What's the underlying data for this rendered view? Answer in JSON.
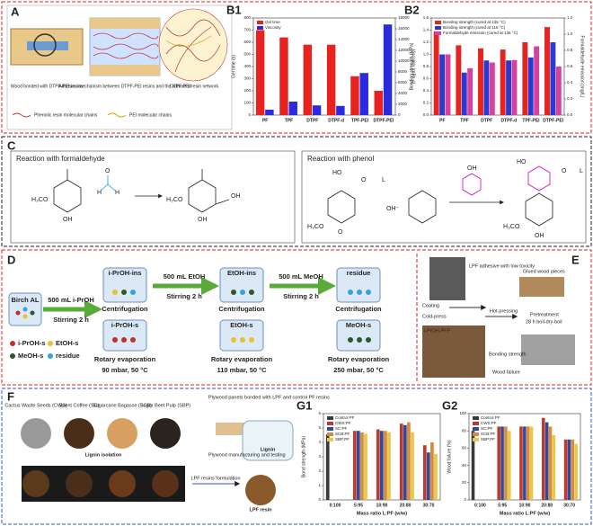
{
  "panel_a": {
    "label": "A",
    "captions": [
      "Wood bonded with DTPF-PEI resins",
      "Adhesion mechanism between DTPF-PEI resins and the adherend",
      "DTPF-PEI resin network"
    ],
    "legend": [
      "Phenolic resin molecular chains",
      "PEI molecular chains"
    ]
  },
  "panel_c": {
    "label": "C",
    "left_title": "Reaction with formaldehyde",
    "right_title": "Reaction with phenol",
    "catalyst": "OH⁻",
    "atoms": [
      "H₃CO",
      "OH",
      "H",
      "H",
      "O",
      "H₃CO",
      "OH",
      "OH",
      "HO",
      "O",
      "L",
      "H₃CO",
      "O",
      "OH",
      "HO",
      "O",
      "L",
      "H₃CO",
      "OH"
    ]
  },
  "panel_d": {
    "label": "D",
    "start": "Birch AL",
    "steps": [
      "500 mL i-PrOH",
      "500 mL EtOH",
      "500 mL MeOH"
    ],
    "stirring": [
      "Stirring 2 h",
      "Stirring 2 h",
      "Stirring 2 h"
    ],
    "insolubles": [
      "i-PrOH-ins",
      "EtOH-ins",
      "residue"
    ],
    "centrifugation": [
      "Centrifugation",
      "Centrifugation",
      "Centrifugation"
    ],
    "solubles": [
      "i-PrOH-s",
      "EtOH-s",
      "MeOH-s"
    ],
    "evaporation": [
      "Rotary evaporation",
      "Rotary evaporation",
      "Rotary evaporation"
    ],
    "conditions": [
      "90 mbar, 50 °C",
      "110 mbar, 50 °C",
      "250 mbar, 50 °C"
    ],
    "legend": [
      "i-PrOH-s",
      "EtOH-s",
      "MeOH-s",
      "residue"
    ]
  },
  "panel_e": {
    "label": "E",
    "texts": [
      "LPF adhesive with low toxicity",
      "Coating",
      "Cold-press",
      "Hot-pressing",
      "Glued wood pieces",
      "Pretreatment",
      "28 h boil-dry-boil",
      "i-PrOH-PFP",
      "Bonding strength",
      "Wood failure"
    ]
  },
  "panel_f": {
    "label": "F",
    "sources": [
      "Cactus Waste Seeds (CWS)",
      "Spent Coffee (SC)",
      "Sugarcane Bagasse (SCB)",
      "Sugar Beet Pulp (SBP)"
    ],
    "texts": [
      "Lignin isolation",
      "LPF resins formulation",
      "LPF resin",
      "Plywood panels bonded with LPF and control PF resins",
      "Plywood manufacturing and testing",
      "Lignin"
    ]
  },
  "chart_data": [
    {
      "type": "bar",
      "label": "B1",
      "categories": [
        "PF",
        "TPF",
        "DTPF",
        "DTPF-d",
        "TPF-PEI",
        "DTPF-PEI"
      ],
      "series": [
        {
          "name": "Gel time",
          "color": "#e8231f",
          "values": [
            700,
            640,
            580,
            580,
            320,
            200
          ]
        },
        {
          "name": "Viscosity",
          "color": "#2a2ae0",
          "axis": "y2",
          "values": [
            1000,
            2500,
            1800,
            1700,
            7800,
            16800
          ]
        }
      ],
      "ylabel": "Gel time (s)",
      "ylim": [
        0,
        800
      ],
      "yticks": [
        0,
        100,
        200,
        300,
        400,
        500,
        600,
        700,
        800
      ],
      "y2label": "Viscosity (mPa·s)",
      "y2lim": [
        0,
        18000
      ],
      "y2ticks": [
        0,
        2000,
        4000,
        6000,
        8000,
        10000,
        12000,
        14000,
        16000,
        18000
      ]
    },
    {
      "type": "bar",
      "label": "B2",
      "categories": [
        "PF",
        "TPF",
        "DTPF",
        "DTPF-d",
        "TPF-PEI",
        "DTPF-PEI"
      ],
      "series": [
        {
          "name": "Bonding strength (cured at 135 °C)",
          "color": "#e8231f",
          "values": [
            1.38,
            1.15,
            1.1,
            1.08,
            1.2,
            1.45
          ]
        },
        {
          "name": "Bonding strength (cured at 115 °C)",
          "color": "#2a3ad0",
          "values": [
            1.0,
            0.7,
            0.9,
            0.9,
            0.95,
            1.2
          ]
        },
        {
          "name": "Formaldehyde emission (cured at 135 °C)",
          "color": "#d8409e",
          "axis": "y2",
          "values": [
            0.75,
            0.58,
            0.65,
            0.68,
            0.85,
            0.6
          ]
        }
      ],
      "ylabel": "Bonding strength (MPa)",
      "ylim": [
        0,
        1.6
      ],
      "yticks": [
        {
          "value": 0,
          "label": "0.0"
        },
        {
          "value": 0.2,
          "label": "0.2"
        },
        {
          "value": 0.4,
          "label": "0.4"
        },
        {
          "value": 0.6,
          "label": "0.6"
        },
        {
          "value": 0.8,
          "label": "0.8"
        },
        {
          "value": 1,
          "label": "1.0"
        },
        {
          "value": 1.2,
          "label": "1.2"
        },
        {
          "value": 1.4,
          "label": "1.4"
        },
        {
          "value": 1.6,
          "label": "1.6"
        }
      ],
      "y2label": "Formaldehyde emission (mg/L)",
      "y2lim": [
        0,
        1.2
      ],
      "y2ticks": [
        {
          "value": 0,
          "label": "0.0"
        },
        {
          "value": 0.2,
          "label": "0.2"
        },
        {
          "value": 0.4,
          "label": "0.4"
        },
        {
          "value": 0.6,
          "label": "0.6"
        },
        {
          "value": 0.8,
          "label": "0.8"
        },
        {
          "value": 1,
          "label": "1.0"
        },
        {
          "value": 1.2,
          "label": "1.2"
        }
      ]
    },
    {
      "type": "bar",
      "label": "G1",
      "categories": [
        "0:100",
        "5:95",
        "10:90",
        "20:80",
        "30:70"
      ],
      "series": [
        {
          "name": "Control PF",
          "color": "#3a3a3a",
          "values": [
            4.55,
            null,
            null,
            null,
            null
          ]
        },
        {
          "name": "CWS:PF",
          "color": "#c0392b",
          "values": [
            null,
            4.8,
            4.9,
            5.3,
            3.8
          ]
        },
        {
          "name": "SC:PF",
          "color": "#2e4a9e",
          "values": [
            null,
            4.8,
            4.8,
            5.2,
            3.3
          ]
        },
        {
          "name": "SCB:PF",
          "color": "#d98a3a",
          "values": [
            null,
            4.7,
            4.8,
            5.4,
            4.0
          ]
        },
        {
          "name": "SBP:PF",
          "color": "#e6c84a",
          "values": [
            null,
            4.6,
            4.7,
            4.7,
            3.2
          ]
        }
      ],
      "ylabel": "Bond strength (MPa)",
      "xlabel": "Mass ratio L:PF (w/w)",
      "ylim": [
        0,
        6
      ],
      "yticks": [
        0,
        1,
        2,
        3,
        4,
        5,
        6
      ]
    },
    {
      "type": "bar",
      "label": "G2",
      "categories": [
        "0:100",
        "5:95",
        "10:90",
        "20:80",
        "30:70"
      ],
      "series": [
        {
          "name": "Control PF",
          "color": "#3a3a3a",
          "values": [
            80,
            null,
            null,
            null,
            null
          ]
        },
        {
          "name": "CWS:PF",
          "color": "#c0392b",
          "values": [
            null,
            85,
            85,
            95,
            70
          ]
        },
        {
          "name": "SC:PF",
          "color": "#2e4a9e",
          "values": [
            null,
            85,
            85,
            90,
            70
          ]
        },
        {
          "name": "SCB:PF",
          "color": "#d98a3a",
          "values": [
            null,
            85,
            85,
            85,
            70
          ]
        },
        {
          "name": "SBP:PF",
          "color": "#e6c84a",
          "values": [
            null,
            80,
            85,
            75,
            65
          ]
        }
      ],
      "ylabel": "Wood failure (%)",
      "xlabel": "Mass ratio L:PF (w/w)",
      "ylim": [
        0,
        100
      ],
      "yticks": [
        0,
        20,
        40,
        60,
        80,
        100
      ]
    }
  ]
}
